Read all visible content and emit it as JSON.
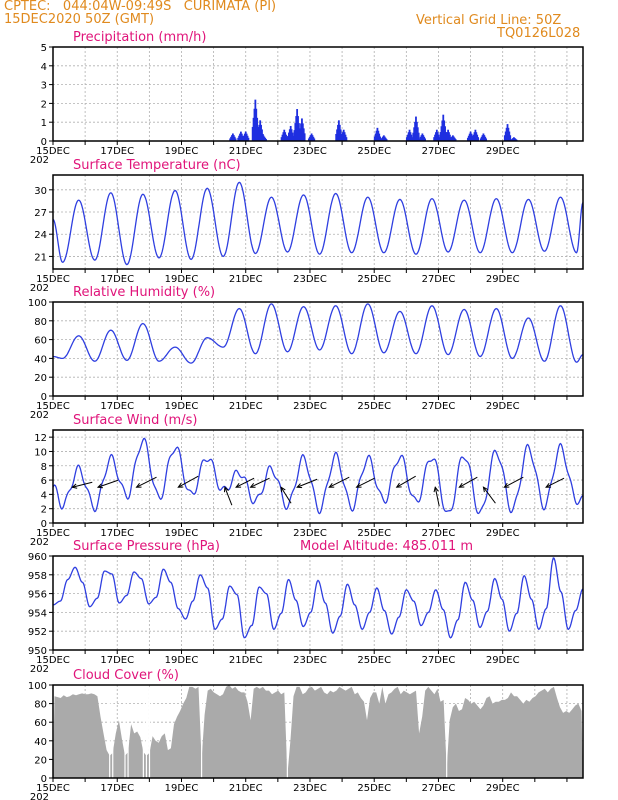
{
  "header": {
    "line1": "CPTEC:   044:04W-09:49S   CURIMATA (PI)",
    "line2": "15DEC2020 50Z (GMT)",
    "right1": "Vertical Grid Line: 50Z",
    "right2": "TQ0126L028"
  },
  "colors": {
    "header": "#e08a1e",
    "title": "#e0147a",
    "line": "#2f3fe0",
    "bar": "#1f2fe0",
    "cloud": "#aaaaaa",
    "grid": "#b0b0b0"
  },
  "chart_data": [
    {
      "type": "bar",
      "title": "Precipitation (mm/h)",
      "x_ticks": [
        "15DEC",
        "17DEC",
        "19DEC",
        "21DEC",
        "23DEC",
        "25DEC",
        "27DEC",
        "29DEC"
      ],
      "x_extra": "202",
      "xlim_days": [
        0,
        16.5
      ],
      "ylim": [
        0,
        5
      ],
      "y_ticks": [
        0,
        1,
        2,
        3,
        4,
        5
      ],
      "bursts": [
        {
          "day": 5.6,
          "peak": 0.4
        },
        {
          "day": 5.85,
          "peak": 0.5
        },
        {
          "day": 6.0,
          "peak": 0.5
        },
        {
          "day": 6.3,
          "peak": 2.2
        },
        {
          "day": 6.45,
          "peak": 1.1
        },
        {
          "day": 6.55,
          "peak": 0.3
        },
        {
          "day": 7.2,
          "peak": 0.6
        },
        {
          "day": 7.4,
          "peak": 0.8
        },
        {
          "day": 7.6,
          "peak": 1.7
        },
        {
          "day": 7.75,
          "peak": 1.2
        },
        {
          "day": 8.05,
          "peak": 0.4
        },
        {
          "day": 8.9,
          "peak": 1.1
        },
        {
          "day": 9.05,
          "peak": 0.6
        },
        {
          "day": 10.1,
          "peak": 0.7
        },
        {
          "day": 10.3,
          "peak": 0.3
        },
        {
          "day": 11.1,
          "peak": 0.6
        },
        {
          "day": 11.3,
          "peak": 1.3
        },
        {
          "day": 11.5,
          "peak": 0.4
        },
        {
          "day": 11.95,
          "peak": 0.6
        },
        {
          "day": 12.15,
          "peak": 1.4
        },
        {
          "day": 12.3,
          "peak": 0.6
        },
        {
          "day": 12.45,
          "peak": 0.3
        },
        {
          "day": 13.0,
          "peak": 0.5
        },
        {
          "day": 13.15,
          "peak": 0.6
        },
        {
          "day": 13.4,
          "peak": 0.4
        },
        {
          "day": 14.15,
          "peak": 0.9
        },
        {
          "day": 14.35,
          "peak": 0.2
        }
      ]
    },
    {
      "type": "line",
      "title": "Surface Temperature (nC)",
      "x_ticks": [
        "15DEC",
        "17DEC",
        "19DEC",
        "21DEC",
        "23DEC",
        "25DEC",
        "27DEC",
        "29DEC"
      ],
      "x_extra": "202",
      "xlim_days": [
        0,
        16.5
      ],
      "ylim": [
        19.3,
        32
      ],
      "y_ticks": [
        21,
        24,
        27,
        30
      ],
      "daily_min": [
        20.2,
        20.5,
        19.9,
        20.8,
        20.6,
        21.0,
        21.4,
        21.6,
        21.3,
        21.5,
        21.5,
        21.3,
        21.6,
        21.5,
        21.5,
        21.7,
        21.5
      ],
      "daily_max": [
        28.6,
        29.6,
        29.4,
        29.9,
        30.2,
        31.0,
        29.0,
        29.3,
        29.5,
        29.0,
        28.7,
        28.8,
        28.6,
        28.8,
        28.7,
        29.0,
        30.4
      ],
      "start_value": 26.0,
      "end_value": 28.3
    },
    {
      "type": "line",
      "title": "Relative Humidity (%)",
      "x_ticks": [
        "15DEC",
        "17DEC",
        "19DEC",
        "21DEC",
        "23DEC",
        "25DEC",
        "27DEC",
        "29DEC"
      ],
      "x_extra": "202",
      "xlim_days": [
        0,
        16.5
      ],
      "ylim": [
        0,
        100
      ],
      "y_ticks": [
        0,
        20,
        40,
        60,
        80,
        100
      ],
      "daily_max": [
        64,
        70,
        77,
        52,
        62,
        93,
        98,
        95,
        96,
        98,
        90,
        96,
        92,
        93,
        83,
        96,
        60
      ],
      "daily_min": [
        40,
        37,
        38,
        37,
        35,
        52,
        45,
        47,
        49,
        45,
        46,
        45,
        44,
        42,
        40,
        37,
        36
      ],
      "start_value": 42,
      "end_value": 44
    },
    {
      "type": "line",
      "title": "Surface Wind (m/s)",
      "x_ticks": [
        "15DEC",
        "17DEC",
        "19DEC",
        "21DEC",
        "23DEC",
        "25DEC",
        "27DEC",
        "29DEC"
      ],
      "x_extra": "202",
      "xlim_days": [
        0,
        16.5
      ],
      "ylim": [
        0,
        13
      ],
      "y_ticks": [
        0,
        2,
        4,
        6,
        8,
        10,
        12
      ],
      "daily_max": [
        7.5,
        9.0,
        11.5,
        10.6,
        9.2,
        7.1,
        7.6,
        9.0,
        9.3,
        9.0,
        9.3,
        9.3,
        9.5,
        10.0,
        10.5,
        10.5,
        10.5
      ],
      "daily_min": [
        2.5,
        2.2,
        3.8,
        3.5,
        3.9,
        4.5,
        3.0,
        2.4,
        1.9,
        2.2,
        3.1,
        2.9,
        1.1,
        1.3,
        1.8,
        2.4,
        3.2
      ],
      "start_value": 5.0,
      "end_value": 3.2,
      "arrows": [
        {
          "day": 0.6,
          "u": 1.0,
          "v": 0.25
        },
        {
          "day": 1.4,
          "u": 1.0,
          "v": 0.35
        },
        {
          "day": 2.6,
          "u": 1.0,
          "v": 0.5
        },
        {
          "day": 3.9,
          "u": 1.0,
          "v": 0.55
        },
        {
          "day": 5.35,
          "u": 0.35,
          "v": -0.9
        },
        {
          "day": 5.7,
          "u": 0.9,
          "v": 0.45
        },
        {
          "day": 6.15,
          "u": 0.95,
          "v": 0.45
        },
        {
          "day": 7.1,
          "u": 0.5,
          "v": -0.8
        },
        {
          "day": 7.6,
          "u": 1.0,
          "v": 0.4
        },
        {
          "day": 8.6,
          "u": 1.0,
          "v": 0.5
        },
        {
          "day": 9.45,
          "u": 0.9,
          "v": 0.45
        },
        {
          "day": 10.7,
          "u": 0.95,
          "v": 0.55
        },
        {
          "day": 11.9,
          "u": 0.2,
          "v": -0.95
        },
        {
          "day": 12.65,
          "u": 0.9,
          "v": 0.5
        },
        {
          "day": 13.4,
          "u": 0.6,
          "v": -0.8
        },
        {
          "day": 14.05,
          "u": 0.95,
          "v": 0.5
        },
        {
          "day": 15.35,
          "u": 0.9,
          "v": 0.45
        }
      ]
    },
    {
      "type": "line",
      "title": "Surface Pressure (hPa)",
      "annotation": "Model Altitude: 485.011 m",
      "x_ticks": [
        "15DEC",
        "17DEC",
        "19DEC",
        "21DEC",
        "23DEC",
        "25DEC",
        "27DEC",
        "29DEC"
      ],
      "x_extra": "202",
      "xlim_days": [
        0,
        16.5
      ],
      "ylim": [
        950,
        960
      ],
      "y_ticks": [
        950,
        952,
        954,
        956,
        958,
        960
      ],
      "hourly_samples": [
        954.8,
        955.2,
        957.5,
        958.8,
        957.2,
        954.6,
        955.5,
        958.4,
        958.1,
        955.0,
        955.8,
        958.3,
        957.6,
        954.9,
        955.6,
        958.6,
        957.2,
        954.4,
        953.3,
        955.2,
        958.0,
        956.6,
        952.2,
        953.3,
        956.8,
        955.9,
        951.3,
        952.6,
        956.7,
        956.0,
        952.2,
        953.9,
        957.5,
        955.3,
        952.5,
        954.0,
        957.4,
        955.0,
        951.8,
        953.6,
        957.0,
        954.8,
        952.2,
        954.0,
        956.6,
        954.2,
        951.7,
        953.5,
        956.4,
        955.2,
        952.6,
        954.0,
        956.4,
        954.3,
        951.3,
        953.2,
        957.2,
        955.3,
        952.4,
        954.1,
        957.6,
        955.4,
        952.0,
        953.9,
        957.9,
        955.4,
        952.2,
        954.4,
        959.8,
        956.2,
        952.2,
        954.2,
        956.5
      ]
    },
    {
      "type": "area",
      "title": "Cloud Cover (%)",
      "x_ticks": [
        "15DEC",
        "17DEC",
        "19DEC",
        "21DEC",
        "23DEC",
        "25DEC",
        "27DEC",
        "29DEC"
      ],
      "x_extra": "202",
      "xlim_days": [
        0,
        16.5
      ],
      "ylim": [
        0,
        100
      ],
      "y_ticks": [
        0,
        20,
        40,
        60,
        80,
        100
      ],
      "samples": [
        88,
        87,
        86,
        89,
        87,
        88,
        90,
        89,
        90,
        91,
        90,
        90,
        91,
        90,
        88,
        66,
        48,
        30,
        24,
        27,
        48,
        62,
        42,
        24,
        28,
        58,
        48,
        50,
        44,
        28,
        24,
        27,
        45,
        40,
        38,
        45,
        48,
        30,
        32,
        58,
        66,
        72,
        80,
        86,
        98,
        98,
        96,
        98,
        20,
        68,
        94,
        96,
        92,
        90,
        88,
        90,
        98,
        100,
        96,
        98,
        94,
        92,
        92,
        82,
        62,
        96,
        98,
        96,
        98,
        94,
        94,
        90,
        92,
        94,
        90,
        92,
        3,
        40,
        88,
        98,
        98,
        90,
        92,
        97,
        98,
        94,
        96,
        98,
        92,
        90,
        94,
        92,
        94,
        98,
        96,
        94,
        96,
        98,
        90,
        92,
        86,
        82,
        62,
        86,
        92,
        92,
        80,
        98,
        80,
        90,
        92,
        96,
        98,
        90,
        94,
        92,
        90,
        92,
        94,
        48,
        66,
        94,
        98,
        94,
        90,
        96,
        82,
        84,
        10,
        62,
        76,
        80,
        72,
        74,
        86,
        84,
        80,
        82,
        78,
        74,
        78,
        86,
        88,
        80,
        82,
        82,
        84,
        84,
        86,
        92,
        88,
        88,
        84,
        80,
        84,
        82,
        86,
        88,
        92,
        94,
        96,
        92,
        96,
        98,
        86,
        76,
        70,
        72,
        70,
        74,
        78,
        80,
        72
      ]
    }
  ]
}
